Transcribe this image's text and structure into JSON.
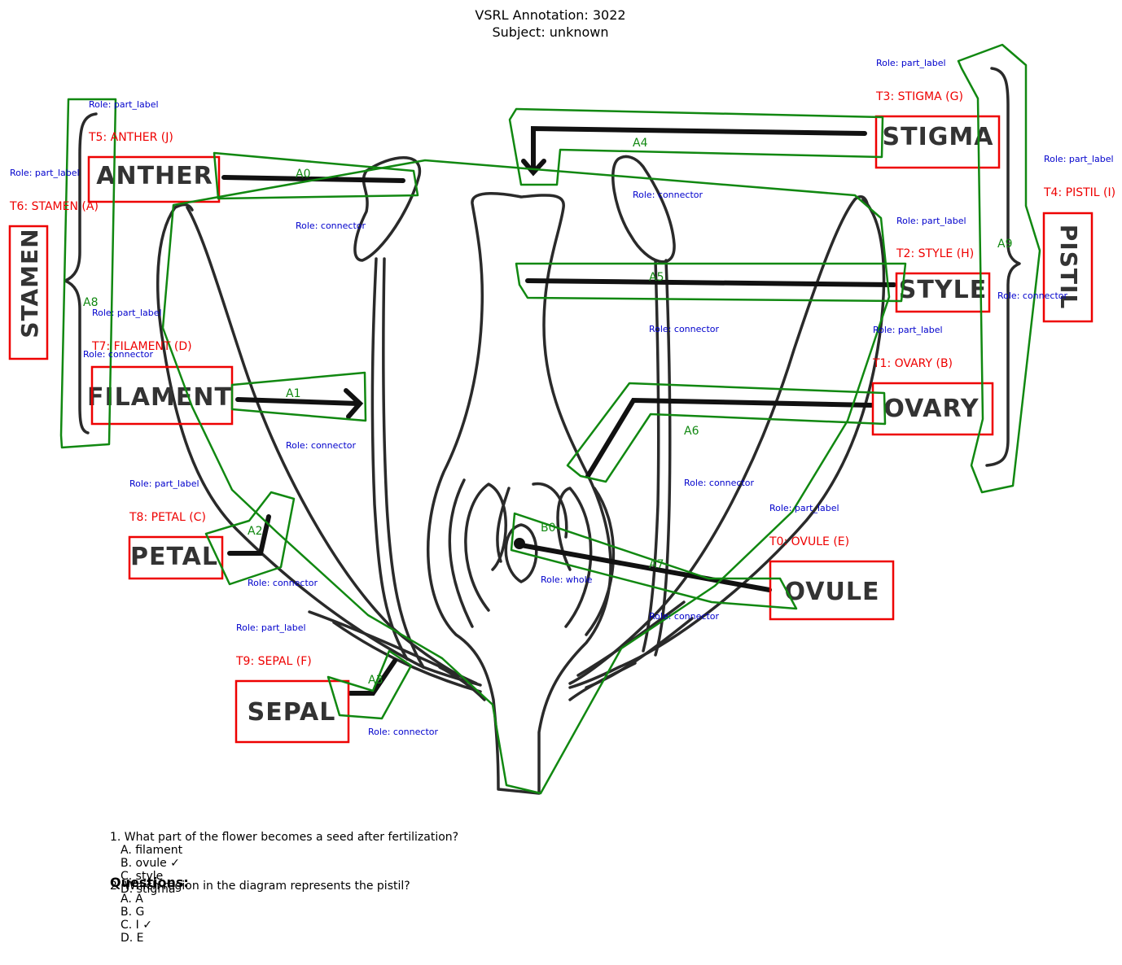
{
  "header": {
    "title_line1": "VSRL Annotation: 3022",
    "title_line2": "Subject: unknown"
  },
  "diagram_words": {
    "anther": "ANTHER",
    "stigma": "STIGMA",
    "stamen": "STAMEN",
    "pistil": "PISTIL",
    "style": "STYLE",
    "filament": "FILAMENT",
    "ovary": "OVARY",
    "petal": "PETAL",
    "ovule": "OVULE",
    "sepal": "SEPAL"
  },
  "text_labels": [
    {
      "id": "T0",
      "label": "T0: OVULE (E)",
      "role": "Role: part_label"
    },
    {
      "id": "T1",
      "label": "T1: OVARY (B)",
      "role": "Role: part_label"
    },
    {
      "id": "T2",
      "label": "T2: STYLE (H)",
      "role": "Role: part_label"
    },
    {
      "id": "T3",
      "label": "T3: STIGMA (G)",
      "role": "Role: part_label"
    },
    {
      "id": "T4",
      "label": "T4: PISTIL (I)",
      "role": "Role: part_label"
    },
    {
      "id": "T5",
      "label": "T5: ANTHER (J)",
      "role": "Role: part_label"
    },
    {
      "id": "T6",
      "label": "T6: STAMEN (A)",
      "role": "Role: part_label"
    },
    {
      "id": "T7",
      "label": "T7: FILAMENT (D)",
      "role": "Role: part_label"
    },
    {
      "id": "T8",
      "label": "T8: PETAL (C)",
      "role": "Role: part_label"
    },
    {
      "id": "T9",
      "label": "T9: SEPAL (F)",
      "role": "Role: part_label"
    }
  ],
  "arrows": [
    {
      "id": "A0",
      "label": "A0",
      "role": "Role: connector"
    },
    {
      "id": "A1",
      "label": "A1",
      "role": "Role: connector"
    },
    {
      "id": "A2",
      "label": "A2",
      "role": "Role: connector"
    },
    {
      "id": "A3",
      "label": "A3",
      "role": "Role: connector"
    },
    {
      "id": "A4",
      "label": "A4",
      "role": "Role: connector"
    },
    {
      "id": "A5",
      "label": "A5",
      "role": "Role: connector"
    },
    {
      "id": "A6",
      "label": "A6",
      "role": "Role: connector"
    },
    {
      "id": "A7",
      "label": "A7",
      "role": "Role: connector"
    },
    {
      "id": "A8",
      "label": "A8",
      "role": "Role: connector"
    },
    {
      "id": "A9",
      "label": "A9",
      "role": "Role: connector"
    }
  ],
  "blobs": [
    {
      "id": "B0",
      "label": "B0",
      "role": "Role: whole"
    }
  ],
  "questions": {
    "heading": "Questions:",
    "items": [
      {
        "question": "1. What part of the flower becomes a seed after fertilization?",
        "options": [
          "A. filament",
          "B. ovule ✓",
          "C. style",
          "D. stigma"
        ]
      },
      {
        "question": "2. Which region in the diagram represents the pistil?",
        "options": [
          "A. A",
          "B. G",
          "C. I ✓",
          "D. E"
        ]
      }
    ]
  },
  "colors": {
    "text_label_box": "#ee0000",
    "arrow_polygon": "#118811",
    "role_text": "#0000cc"
  }
}
